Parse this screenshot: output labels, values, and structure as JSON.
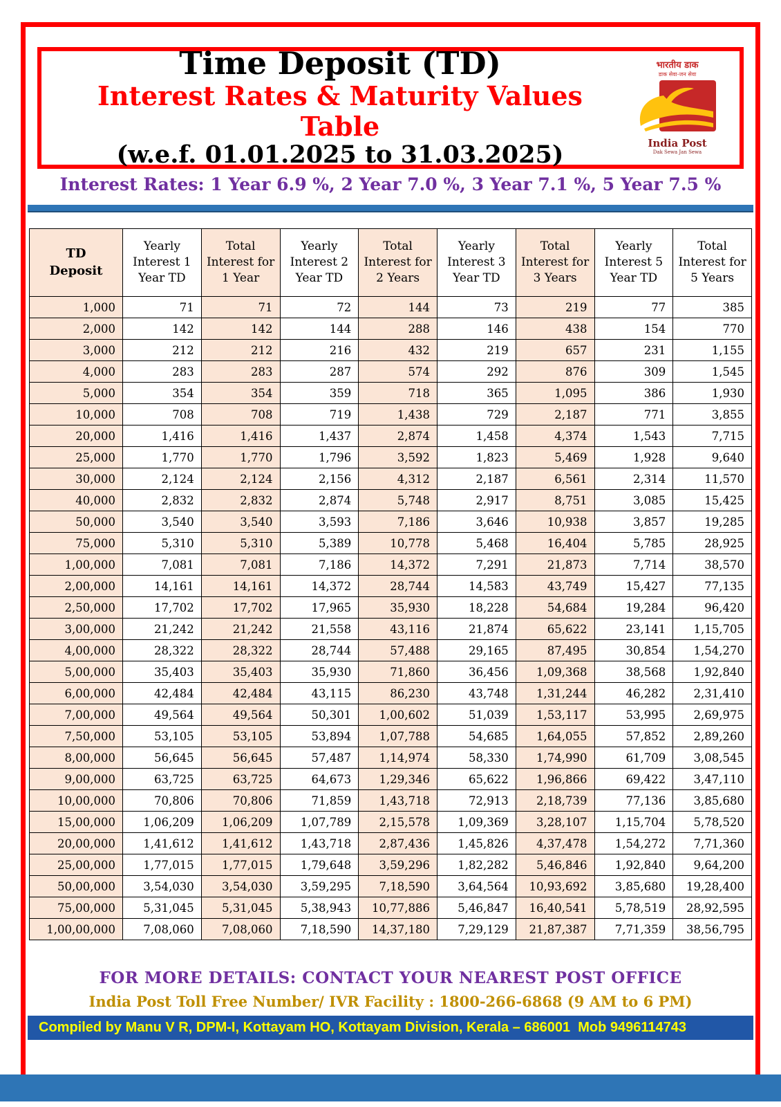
{
  "header": {
    "title": "Time Deposit (TD)",
    "subtitle": "Interest Rates & Maturity Values Table",
    "period": "(w.e.f. 01.01.2025 to 31.03.2025)",
    "rates_line": "Interest Rates: 1 Year 6.9 %, 2 Year 7.0 %, 3 Year 7.1 %, 5 Year 7.5 %",
    "logo": {
      "hindi_name": "भारतीय डाक",
      "hindi_tagline": "डाक सेवा-जन सेवा",
      "english_name": "India Post",
      "english_tagline": "Dak Sewa Jan Sewa"
    }
  },
  "table": {
    "columns": [
      "TD\nDeposit",
      "Yearly Interest 1 Year TD",
      "Total Interest for 1 Year",
      "Yearly Interest 2 Year TD",
      "Total Interest for 2 Years",
      "Yearly Interest 3 Year TD",
      "Total Interest for 3 Years",
      "Yearly Interest 5 Year TD",
      "Total Interest for 5 Years"
    ],
    "rows": [
      [
        "1,000",
        "71",
        "71",
        "72",
        "144",
        "73",
        "219",
        "77",
        "385"
      ],
      [
        "2,000",
        "142",
        "142",
        "144",
        "288",
        "146",
        "438",
        "154",
        "770"
      ],
      [
        "3,000",
        "212",
        "212",
        "216",
        "432",
        "219",
        "657",
        "231",
        "1,155"
      ],
      [
        "4,000",
        "283",
        "283",
        "287",
        "574",
        "292",
        "876",
        "309",
        "1,545"
      ],
      [
        "5,000",
        "354",
        "354",
        "359",
        "718",
        "365",
        "1,095",
        "386",
        "1,930"
      ],
      [
        "10,000",
        "708",
        "708",
        "719",
        "1,438",
        "729",
        "2,187",
        "771",
        "3,855"
      ],
      [
        "20,000",
        "1,416",
        "1,416",
        "1,437",
        "2,874",
        "1,458",
        "4,374",
        "1,543",
        "7,715"
      ],
      [
        "25,000",
        "1,770",
        "1,770",
        "1,796",
        "3,592",
        "1,823",
        "5,469",
        "1,928",
        "9,640"
      ],
      [
        "30,000",
        "2,124",
        "2,124",
        "2,156",
        "4,312",
        "2,187",
        "6,561",
        "2,314",
        "11,570"
      ],
      [
        "40,000",
        "2,832",
        "2,832",
        "2,874",
        "5,748",
        "2,917",
        "8,751",
        "3,085",
        "15,425"
      ],
      [
        "50,000",
        "3,540",
        "3,540",
        "3,593",
        "7,186",
        "3,646",
        "10,938",
        "3,857",
        "19,285"
      ],
      [
        "75,000",
        "5,310",
        "5,310",
        "5,389",
        "10,778",
        "5,468",
        "16,404",
        "5,785",
        "28,925"
      ],
      [
        "1,00,000",
        "7,081",
        "7,081",
        "7,186",
        "14,372",
        "7,291",
        "21,873",
        "7,714",
        "38,570"
      ],
      [
        "2,00,000",
        "14,161",
        "14,161",
        "14,372",
        "28,744",
        "14,583",
        "43,749",
        "15,427",
        "77,135"
      ],
      [
        "2,50,000",
        "17,702",
        "17,702",
        "17,965",
        "35,930",
        "18,228",
        "54,684",
        "19,284",
        "96,420"
      ],
      [
        "3,00,000",
        "21,242",
        "21,242",
        "21,558",
        "43,116",
        "21,874",
        "65,622",
        "23,141",
        "1,15,705"
      ],
      [
        "4,00,000",
        "28,322",
        "28,322",
        "28,744",
        "57,488",
        "29,165",
        "87,495",
        "30,854",
        "1,54,270"
      ],
      [
        "5,00,000",
        "35,403",
        "35,403",
        "35,930",
        "71,860",
        "36,456",
        "1,09,368",
        "38,568",
        "1,92,840"
      ],
      [
        "6,00,000",
        "42,484",
        "42,484",
        "43,115",
        "86,230",
        "43,748",
        "1,31,244",
        "46,282",
        "2,31,410"
      ],
      [
        "7,00,000",
        "49,564",
        "49,564",
        "50,301",
        "1,00,602",
        "51,039",
        "1,53,117",
        "53,995",
        "2,69,975"
      ],
      [
        "7,50,000",
        "53,105",
        "53,105",
        "53,894",
        "1,07,788",
        "54,685",
        "1,64,055",
        "57,852",
        "2,89,260"
      ],
      [
        "8,00,000",
        "56,645",
        "56,645",
        "57,487",
        "1,14,974",
        "58,330",
        "1,74,990",
        "61,709",
        "3,08,545"
      ],
      [
        "9,00,000",
        "63,725",
        "63,725",
        "64,673",
        "1,29,346",
        "65,622",
        "1,96,866",
        "69,422",
        "3,47,110"
      ],
      [
        "10,00,000",
        "70,806",
        "70,806",
        "71,859",
        "1,43,718",
        "72,913",
        "2,18,739",
        "77,136",
        "3,85,680"
      ],
      [
        "15,00,000",
        "1,06,209",
        "1,06,209",
        "1,07,789",
        "2,15,578",
        "1,09,369",
        "3,28,107",
        "1,15,704",
        "5,78,520"
      ],
      [
        "20,00,000",
        "1,41,612",
        "1,41,612",
        "1,43,718",
        "2,87,436",
        "1,45,826",
        "4,37,478",
        "1,54,272",
        "7,71,360"
      ],
      [
        "25,00,000",
        "1,77,015",
        "1,77,015",
        "1,79,648",
        "3,59,296",
        "1,82,282",
        "5,46,846",
        "1,92,840",
        "9,64,200"
      ],
      [
        "50,00,000",
        "3,54,030",
        "3,54,030",
        "3,59,295",
        "7,18,590",
        "3,64,564",
        "10,93,692",
        "3,85,680",
        "19,28,400"
      ],
      [
        "75,00,000",
        "5,31,045",
        "5,31,045",
        "5,38,943",
        "10,77,886",
        "5,46,847",
        "16,40,541",
        "5,78,519",
        "28,92,595"
      ],
      [
        "1,00,00,000",
        "7,08,060",
        "7,08,060",
        "7,18,590",
        "14,37,180",
        "7,29,129",
        "21,87,387",
        "7,71,359",
        "38,56,795"
      ]
    ]
  },
  "footer": {
    "line1": "FOR MORE DETAILS: CONTACT YOUR NEAREST POST OFFICE",
    "line2": "India Post Toll Free Number/ IVR Facility : 1800-266-6868 (9 AM to 6 PM)",
    "compiled_by": "Compiled by Manu V R, DPM-I, Kottayam HO, Kottayam Division, Kerala – 686001  Mob 9496114743"
  },
  "colors": {
    "frame_red": "#ff0000",
    "subtitle_red": "#ff0000",
    "purple": "#7030a0",
    "gold": "#bf8f00",
    "divider_blue": "#2e75b6",
    "bar_blue": "#2157a7",
    "cell_peach": "#fbe5d6",
    "bar_text_yellow": "#ffff00",
    "logo_red": "#c62828",
    "logo_yellow": "#ffc20e"
  }
}
